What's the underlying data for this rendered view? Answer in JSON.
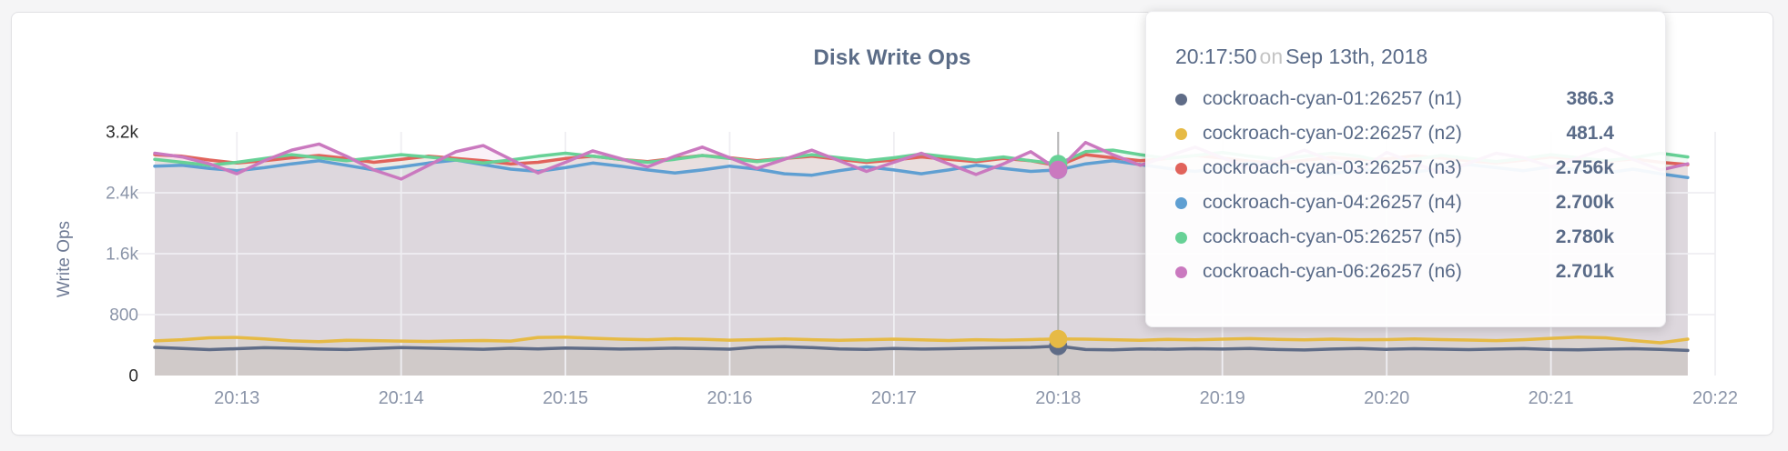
{
  "chart": {
    "title": "Disk Write Ops",
    "y_axis_label": "Write Ops"
  },
  "tooltip": {
    "time": "20:17:50",
    "on_word": "on",
    "date": "Sep 13th, 2018",
    "rows": [
      {
        "label": "cockroach-cyan-01:26257 (n1)",
        "value": "386.3",
        "color": "#5f6c87"
      },
      {
        "label": "cockroach-cyan-02:26257 (n2)",
        "value": "481.4",
        "color": "#e6ba45"
      },
      {
        "label": "cockroach-cyan-03:26257 (n3)",
        "value": "2.756k",
        "color": "#e1635b"
      },
      {
        "label": "cockroach-cyan-04:26257 (n4)",
        "value": "2.700k",
        "color": "#5f9fd2"
      },
      {
        "label": "cockroach-cyan-05:26257 (n5)",
        "value": "2.780k",
        "color": "#67d196"
      },
      {
        "label": "cockroach-cyan-06:26257 (n6)",
        "value": "2.701k",
        "color": "#ca79bf"
      }
    ]
  },
  "chart_data": {
    "type": "line",
    "title": "Disk Write Ops",
    "ylabel": "Write Ops",
    "ylim": [
      0,
      3200
    ],
    "grid": true,
    "legend_position": "tooltip",
    "x_unit": "seconds after 20:00, Sep 13th 2018",
    "x_domain_seconds": [
      750,
      1320
    ],
    "x_start_seconds": 750,
    "x_step_seconds": 10,
    "hover_index": 33,
    "hover_time": "20:17:50",
    "grid_color": "#efeef2",
    "crosshair_color": "#b3b3b3",
    "axis_color": "#8b95a9",
    "axis_edge_color": "#2d2d2d",
    "x_ticks": [
      {
        "label": "20:13",
        "seconds": 780
      },
      {
        "label": "20:14",
        "seconds": 840
      },
      {
        "label": "20:15",
        "seconds": 900
      },
      {
        "label": "20:16",
        "seconds": 960
      },
      {
        "label": "20:17",
        "seconds": 1020
      },
      {
        "label": "20:18",
        "seconds": 1080
      },
      {
        "label": "20:19",
        "seconds": 1140
      },
      {
        "label": "20:20",
        "seconds": 1200
      },
      {
        "label": "20:21",
        "seconds": 1260
      },
      {
        "label": "20:22",
        "seconds": 1320
      }
    ],
    "y_ticks": [
      {
        "label": "0",
        "value": 0,
        "edge": true
      },
      {
        "label": "800",
        "value": 800,
        "edge": false
      },
      {
        "label": "1.6k",
        "value": 1600,
        "edge": false
      },
      {
        "label": "2.4k",
        "value": 2400,
        "edge": false
      },
      {
        "label": "3.2k",
        "value": 3200,
        "edge": true
      }
    ],
    "series": [
      {
        "name": "cockroach-cyan-01:26257 (n1)",
        "color": "#5f6c87",
        "hover_value": 386.3,
        "values": [
          370,
          355,
          340,
          352,
          365,
          358,
          348,
          342,
          355,
          368,
          360,
          352,
          345,
          358,
          350,
          362,
          355,
          348,
          352,
          360,
          354,
          346,
          372,
          380,
          366,
          350,
          344,
          356,
          348,
          352,
          360,
          365,
          370,
          386.3,
          342,
          338,
          350,
          345,
          352,
          348,
          355,
          342,
          336,
          348,
          356,
          344,
          352,
          346,
          340,
          348,
          354,
          342,
          338,
          346,
          352,
          344,
          330
        ]
      },
      {
        "name": "cockroach-cyan-02:26257 (n2)",
        "color": "#e6ba45",
        "hover_value": 481.4,
        "values": [
          455,
          470,
          495,
          500,
          480,
          455,
          445,
          462,
          458,
          452,
          448,
          455,
          460,
          452,
          500,
          505,
          490,
          478,
          470,
          482,
          476,
          465,
          472,
          480,
          470,
          462,
          470,
          478,
          468,
          460,
          470,
          465,
          472,
          481.4,
          478,
          470,
          462,
          475,
          468,
          478,
          485,
          475,
          468,
          478,
          470,
          472,
          480,
          472,
          466,
          458,
          470,
          488,
          505,
          495,
          460,
          430,
          478
        ]
      },
      {
        "name": "cockroach-cyan-03:26257 (n3)",
        "color": "#e1635b",
        "hover_value": 2756,
        "values": [
          2900,
          2880,
          2830,
          2790,
          2820,
          2860,
          2890,
          2850,
          2800,
          2840,
          2880,
          2850,
          2820,
          2780,
          2800,
          2850,
          2880,
          2840,
          2810,
          2850,
          2890,
          2860,
          2820,
          2850,
          2880,
          2840,
          2800,
          2830,
          2870,
          2840,
          2810,
          2850,
          2820,
          2756,
          2900,
          2860,
          2820,
          2850,
          2890,
          2855,
          2815,
          2785,
          2825,
          2865,
          2835,
          2845,
          2885,
          2855,
          2820,
          2790,
          2830,
          2870,
          2840,
          2810,
          2845,
          2800,
          2770
        ]
      },
      {
        "name": "cockroach-cyan-04:26257 (n4)",
        "color": "#5f9fd2",
        "hover_value": 2700,
        "values": [
          2750,
          2760,
          2720,
          2690,
          2730,
          2780,
          2820,
          2760,
          2700,
          2740,
          2790,
          2830,
          2770,
          2710,
          2680,
          2730,
          2790,
          2750,
          2700,
          2660,
          2700,
          2750,
          2710,
          2650,
          2630,
          2690,
          2740,
          2700,
          2650,
          2700,
          2760,
          2720,
          2680,
          2700,
          2780,
          2820,
          2770,
          2720,
          2680,
          2730,
          2790,
          2740,
          2690,
          2650,
          2700,
          2710,
          2670,
          2720,
          2770,
          2730,
          2690,
          2740,
          2700,
          2660,
          2710,
          2650,
          2600
        ]
      },
      {
        "name": "cockroach-cyan-05:26257 (n5)",
        "color": "#67d196",
        "hover_value": 2780,
        "values": [
          2840,
          2800,
          2760,
          2800,
          2850,
          2900,
          2860,
          2820,
          2860,
          2900,
          2870,
          2830,
          2790,
          2830,
          2880,
          2920,
          2880,
          2840,
          2800,
          2840,
          2890,
          2850,
          2810,
          2850,
          2900,
          2860,
          2820,
          2860,
          2910,
          2870,
          2830,
          2870,
          2820,
          2780,
          2940,
          2960,
          2900,
          2850,
          2890,
          2930,
          2880,
          2840,
          2880,
          2920,
          2880,
          2800,
          2840,
          2890,
          2850,
          2810,
          2850,
          2900,
          2860,
          2820,
          2860,
          2920,
          2870
        ]
      },
      {
        "name": "cockroach-cyan-06:26257 (n6)",
        "color": "#ca79bf",
        "hover_value": 2701,
        "values": [
          2920,
          2870,
          2780,
          2650,
          2820,
          2960,
          3040,
          2880,
          2700,
          2580,
          2760,
          2940,
          3020,
          2840,
          2660,
          2800,
          2950,
          2850,
          2740,
          2880,
          3000,
          2860,
          2720,
          2840,
          2960,
          2820,
          2680,
          2800,
          2920,
          2780,
          2640,
          2780,
          2940,
          2701,
          3060,
          2900,
          2760,
          2880,
          3000,
          2860,
          2720,
          2840,
          2960,
          2820,
          2690,
          2930,
          2790,
          2660,
          2790,
          2920,
          2860,
          2740,
          2860,
          2980,
          2840,
          2700,
          2780
        ]
      }
    ]
  }
}
